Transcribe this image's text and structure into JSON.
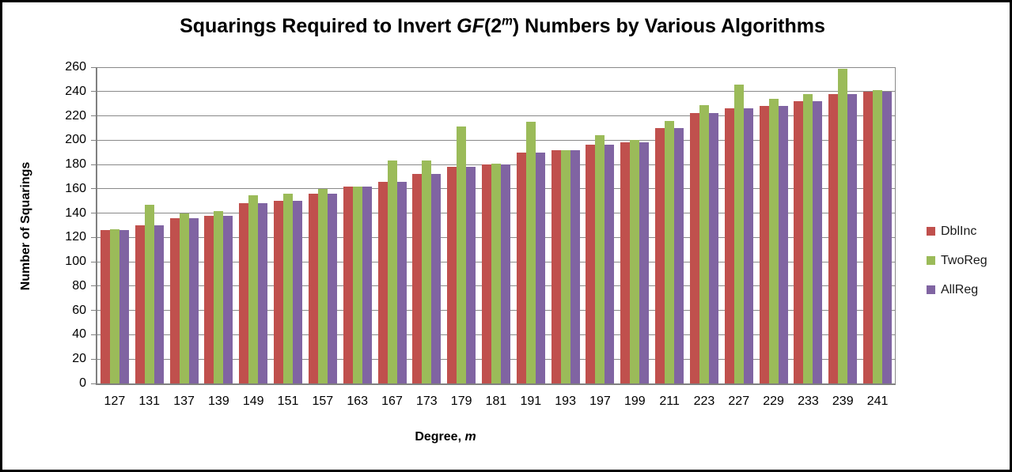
{
  "chart_data": {
    "type": "bar",
    "title_parts": {
      "pre": "Squarings Required to Invert ",
      "gf": "GF",
      "open": "(2",
      "sup": "m",
      "post": ") Numbers by Various Algorithms"
    },
    "title_plain": "Squarings Required to Invert GF(2^m) Numbers by Various Algorithms",
    "ylabel": "Number of Squarings",
    "xlabel_parts": {
      "pre": "Degree, ",
      "var": "m"
    },
    "ylim": [
      0,
      260
    ],
    "yticks": [
      0,
      20,
      40,
      60,
      80,
      100,
      120,
      140,
      160,
      180,
      200,
      220,
      240,
      260
    ],
    "grid": true,
    "legend_position": "right",
    "categories": [
      127,
      131,
      137,
      139,
      149,
      151,
      157,
      163,
      167,
      173,
      179,
      181,
      191,
      193,
      197,
      199,
      211,
      223,
      227,
      229,
      233,
      239,
      241
    ],
    "series": [
      {
        "name": "DblInc",
        "color": "#C0504D",
        "values": [
          126,
          130,
          136,
          138,
          148,
          150,
          156,
          162,
          166,
          172,
          178,
          180,
          190,
          192,
          196,
          198,
          210,
          222,
          226,
          228,
          232,
          238,
          240
        ]
      },
      {
        "name": "TwoReg",
        "color": "#9BBB59",
        "values": [
          127,
          147,
          140,
          142,
          155,
          156,
          160,
          162,
          183,
          183,
          211,
          181,
          215,
          192,
          204,
          200,
          216,
          229,
          246,
          234,
          238,
          259,
          241
        ]
      },
      {
        "name": "AllReg",
        "color": "#8064A2",
        "values": [
          126,
          130,
          136,
          138,
          148,
          150,
          156,
          162,
          166,
          172,
          178,
          180,
          190,
          192,
          196,
          198,
          210,
          222,
          226,
          228,
          232,
          238,
          240
        ]
      }
    ],
    "colors": {
      "gridline": "#898989",
      "axis": "#808080",
      "text": "#000000"
    }
  }
}
